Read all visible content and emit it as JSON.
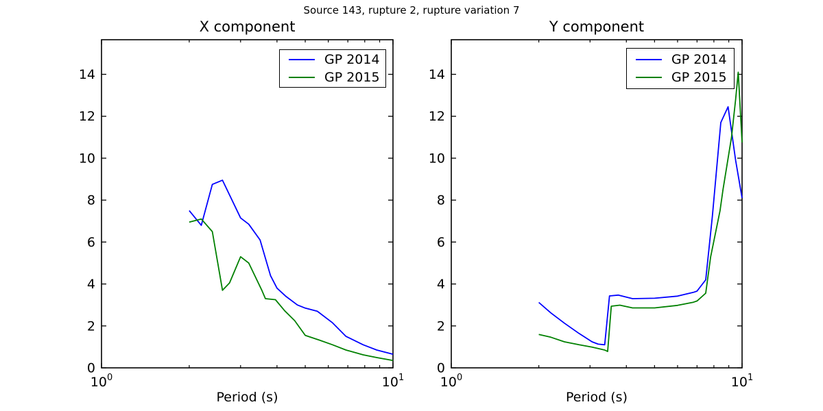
{
  "figure": {
    "suptitle": "Source 143, rupture 2, rupture variation 7",
    "background": "#ffffff",
    "axis_color": "#000000"
  },
  "chart_data": [
    {
      "type": "line",
      "title": "X component",
      "xlabel": "Period (s)",
      "xscale": "log",
      "xlim": [
        1,
        10
      ],
      "ylim": [
        0,
        15.65
      ],
      "yticks": [
        0,
        2,
        4,
        6,
        8,
        10,
        12,
        14
      ],
      "xtick_labels": [
        {
          "base": "10",
          "exp": "0"
        },
        {
          "base": "10",
          "exp": "1"
        }
      ],
      "xminor_ticks": [
        2,
        3,
        4,
        5,
        6,
        7,
        8,
        9
      ],
      "grid": false,
      "legend_position": "upper right",
      "series": [
        {
          "name": "GP 2014",
          "color": "#0000ff",
          "x": [
            2.0,
            2.2,
            2.4,
            2.6,
            3.0,
            3.2,
            3.5,
            3.8,
            4.0,
            4.3,
            4.7,
            5.0,
            5.5,
            6.2,
            6.9,
            7.9,
            8.8,
            10.0
          ],
          "y": [
            7.5,
            6.8,
            8.75,
            8.95,
            7.15,
            6.85,
            6.1,
            4.4,
            3.8,
            3.4,
            3.0,
            2.85,
            2.7,
            2.15,
            1.5,
            1.1,
            0.85,
            0.65
          ]
        },
        {
          "name": "GP 2015",
          "color": "#008000",
          "x": [
            2.0,
            2.2,
            2.4,
            2.6,
            2.75,
            3.0,
            3.2,
            3.55,
            3.65,
            3.95,
            4.25,
            4.6,
            5.0,
            5.6,
            6.2,
            6.9,
            7.9,
            8.8,
            10.0
          ],
          "y": [
            6.95,
            7.1,
            6.5,
            3.7,
            4.05,
            5.3,
            5.0,
            3.7,
            3.3,
            3.25,
            2.72,
            2.25,
            1.55,
            1.32,
            1.1,
            0.85,
            0.62,
            0.49,
            0.35
          ]
        }
      ]
    },
    {
      "type": "line",
      "title": "Y component",
      "xlabel": "Period (s)",
      "xscale": "log",
      "xlim": [
        1,
        10
      ],
      "ylim": [
        0,
        15.65
      ],
      "yticks": [
        0,
        2,
        4,
        6,
        8,
        10,
        12,
        14
      ],
      "xtick_labels": [
        {
          "base": "10",
          "exp": "0"
        },
        {
          "base": "10",
          "exp": "1"
        }
      ],
      "xminor_ticks": [
        2,
        3,
        4,
        5,
        6,
        7,
        8,
        9
      ],
      "grid": false,
      "legend_position": "upper right",
      "series": [
        {
          "name": "GP 2014",
          "color": "#0000ff",
          "x": [
            2.0,
            2.2,
            2.45,
            2.75,
            3.05,
            3.2,
            3.37,
            3.5,
            3.75,
            4.2,
            5.0,
            6.0,
            6.8,
            7.0,
            7.5,
            7.9,
            8.45,
            8.95,
            9.5,
            10.0
          ],
          "y": [
            3.12,
            2.62,
            2.13,
            1.64,
            1.24,
            1.13,
            1.1,
            3.43,
            3.47,
            3.3,
            3.32,
            3.42,
            3.6,
            3.66,
            4.2,
            7.2,
            11.7,
            12.45,
            9.9,
            8.1
          ]
        },
        {
          "name": "GP 2015",
          "color": "#008000",
          "x": [
            2.0,
            2.2,
            2.45,
            2.75,
            3.05,
            3.37,
            3.45,
            3.55,
            3.8,
            4.2,
            5.0,
            6.0,
            6.8,
            7.0,
            7.5,
            7.8,
            8.4,
            8.6,
            9.2,
            9.5,
            9.7,
            10.0
          ],
          "y": [
            1.59,
            1.46,
            1.24,
            1.1,
            0.99,
            0.85,
            0.78,
            2.94,
            2.99,
            2.86,
            2.86,
            2.98,
            3.13,
            3.19,
            3.56,
            5.3,
            7.5,
            8.5,
            11.0,
            12.8,
            14.1,
            10.75
          ]
        }
      ]
    }
  ]
}
